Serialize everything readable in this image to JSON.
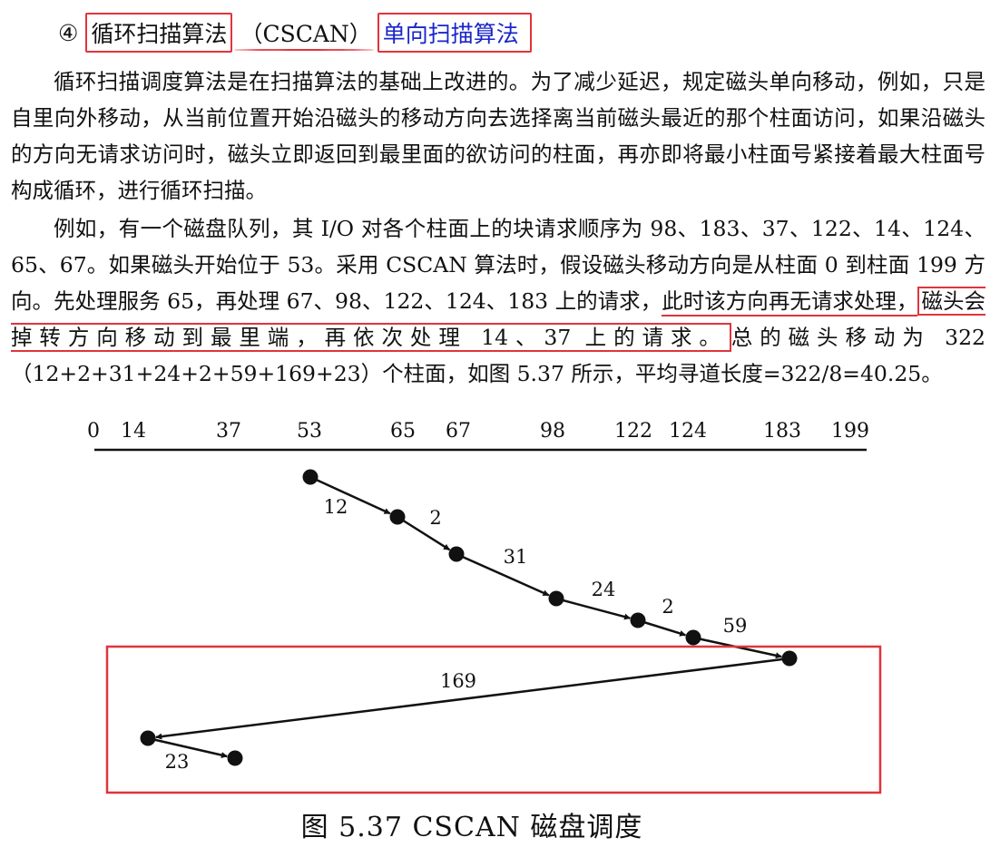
{
  "heading": {
    "circled_num": "④",
    "title_cn": "循环扫描算法",
    "title_en": "（CSCAN）",
    "subtitle": "单向扫描算法"
  },
  "para1": "循环扫描调度算法是在扫描算法的基础上改进的。为了减少延迟，规定磁头单向移动，例如，只是自里向外移动，从当前位置开始沿磁头的移动方向去选择离当前磁头最近的那个柱面访问，如果沿磁头的方向无请求访问时，磁头立即返回到最里面的欲访问的柱面，再亦即将最小柱面号紧接着最大柱面号构成循环，进行循环扫描。",
  "para2": {
    "part1": "例如，有一个磁盘队列，其 I/O 对各个柱面上的块请求顺序为 98、183、37、122、14、124、65、67。如果磁头开始位于 53。采用 CSCAN 算法时，假设磁头移动方向是从柱面 0 到柱面 199 方向。先处理服务 65，再处理 67、98、122、124、183 上的请求，",
    "underlined": "此时该方向再无请求处理，",
    "boxed": "磁头会掉转方向移动到最里端，再依次处理 14、37 上的请求。",
    "part2": "总的磁头移动为 322（12+2+31+24+2+59+169+23）个柱面，如图 5.37 所示，平均寻道长度=322/8=40.25。"
  },
  "chart_data": {
    "type": "line",
    "axis_ticks": [
      0,
      14,
      37,
      53,
      65,
      67,
      98,
      122,
      124,
      183,
      199
    ],
    "path": [
      53,
      65,
      67,
      98,
      122,
      124,
      183,
      14,
      37
    ],
    "segment_labels": [
      "12",
      "2",
      "31",
      "24",
      "2",
      "59",
      "169",
      "23"
    ]
  },
  "caption": "图 5.37    CSCAN 磁盘调度",
  "colors": {
    "highlight": "#e0343c",
    "blue_text": "#1a26c8"
  }
}
